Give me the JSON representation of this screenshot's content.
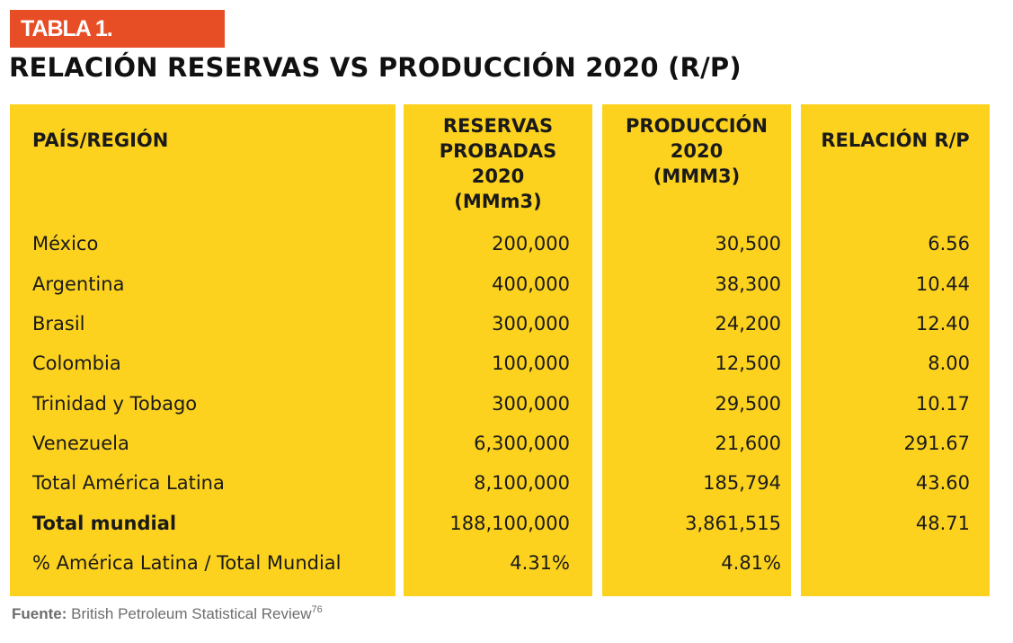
{
  "tag": "TABLA 1.",
  "title": "RELACIÓN RESERVAS VS PRODUCCIÓN 2020 (R/P)",
  "headers": {
    "pais": "PAÍS/REGIÓN",
    "reservas": [
      "RESERVAS",
      "PROBADAS",
      "2020",
      "(MMm3)"
    ],
    "produccion": [
      "PRODUCCIÓN",
      "2020",
      "(MMM3)"
    ],
    "rp": "RELACIÓN R/P"
  },
  "rows": [
    {
      "pais": "México",
      "reservas": "200,000",
      "produccion": "30,500",
      "rp": "6.56"
    },
    {
      "pais": "Argentina",
      "reservas": "400,000",
      "produccion": "38,300",
      "rp": "10.44"
    },
    {
      "pais": "Brasil",
      "reservas": "300,000",
      "produccion": "24,200",
      "rp": "12.40"
    },
    {
      "pais": "Colombia",
      "reservas": "100,000",
      "produccion": "12,500",
      "rp": "8.00"
    },
    {
      "pais": "Trinidad y Tobago",
      "reservas": "300,000",
      "produccion": "29,500",
      "rp": "10.17"
    },
    {
      "pais": "Venezuela",
      "reservas": "6,300,000",
      "produccion": "21,600",
      "rp": "291.67"
    },
    {
      "pais": "Total América Latina",
      "reservas": "8,100,000",
      "produccion": "185,794",
      "rp": "43.60"
    },
    {
      "pais": "Total mundial",
      "reservas": "188,100,000",
      "produccion": "3,861,515",
      "rp": "48.71"
    },
    {
      "pais": "% América Latina / Total Mundial",
      "reservas": "4.31%",
      "produccion": "4.81%",
      "rp": ""
    }
  ],
  "source": {
    "label": "Fuente:",
    "text": " British Petroleum Statistical Review",
    "note": "76"
  },
  "colors": {
    "tag_bg": "#e84e25",
    "column_bg": "#fcd21f"
  }
}
